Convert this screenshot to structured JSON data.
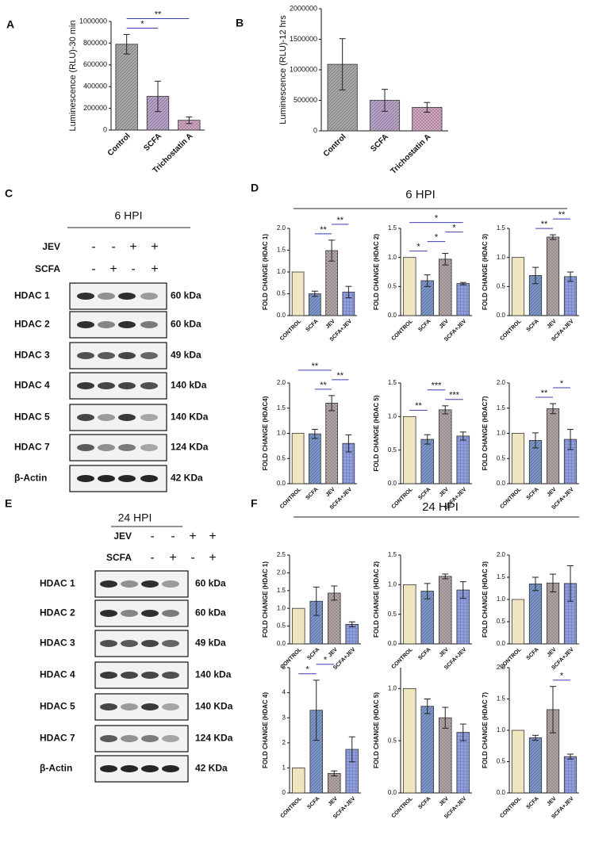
{
  "panels": [
    "A",
    "B",
    "C",
    "D",
    "E",
    "F"
  ],
  "groups": [
    {
      "title": "6 HPI"
    },
    {
      "title": "24 HPI"
    }
  ],
  "blots": [
    {
      "title": "6 HPI",
      "treatments": [
        {
          "name": "JEV",
          "signs": [
            "-",
            "-",
            "+",
            "+"
          ]
        },
        {
          "name": "SCFA",
          "signs": [
            "-",
            "+",
            "-",
            "+"
          ]
        }
      ],
      "rows": [
        {
          "protein": "HDAC 1",
          "size": "60 kDa"
        },
        {
          "protein": "HDAC 2",
          "size": "60 kDa"
        },
        {
          "protein": "HDAC 3",
          "size": "49 kDa"
        },
        {
          "protein": "HDAC 4",
          "size": "140 kDa"
        },
        {
          "protein": "HDAC 5",
          "size": "140 KDa"
        },
        {
          "protein": "HDAC 7",
          "size": "124 KDa"
        },
        {
          "protein": "β-Actin",
          "size": "42 KDa"
        }
      ]
    },
    {
      "title": "24 HPI",
      "treatments": [
        {
          "name": "JEV",
          "signs": [
            "-",
            "-",
            "+",
            "+"
          ]
        },
        {
          "name": "SCFA",
          "signs": [
            "-",
            "+",
            "-",
            "+"
          ]
        }
      ],
      "rows": [
        {
          "protein": "HDAC 1",
          "size": "60 kDa"
        },
        {
          "protein": "HDAC 2",
          "size": "60 kDa"
        },
        {
          "protein": "HDAC 3",
          "size": "49 kDa"
        },
        {
          "protein": "HDAC 4",
          "size": "140 kDa"
        },
        {
          "protein": "HDAC 5",
          "size": "140 KDa"
        },
        {
          "protein": "HDAC 7",
          "size": "124 KDa"
        },
        {
          "protein": "β-Actin",
          "size": "42 KDa"
        }
      ]
    }
  ],
  "chart_data": [
    {
      "type": "bar",
      "ylabel": "Luminescence (RLU)-30 min",
      "categories": [
        "Control",
        "SCFA",
        "Trichostatin A"
      ],
      "values": [
        790000,
        310000,
        90000
      ],
      "errors": [
        90000,
        140000,
        30000
      ],
      "colors": [
        "#a9a9a9",
        "#b9a3c9",
        "#d3a6c2"
      ],
      "ylim": [
        0,
        1000000
      ],
      "yticks": [
        0,
        200000,
        400000,
        600000,
        800000,
        1000000
      ],
      "significance": [
        {
          "pair": [
            "Control",
            "SCFA"
          ],
          "label": "*"
        },
        {
          "pair": [
            "Control",
            "Trichostatin A"
          ],
          "label": "**"
        }
      ]
    },
    {
      "type": "bar",
      "ylabel": "Luminescence (RLU)-12 hrs",
      "categories": [
        "Control",
        "SCFA",
        "Trichostatin A"
      ],
      "values": [
        1090000,
        500000,
        385000
      ],
      "errors": [
        420000,
        180000,
        80000
      ],
      "colors": [
        "#a9a9a9",
        "#b9a3c9",
        "#d3a6c2"
      ],
      "ylim": [
        0,
        2000000
      ],
      "yticks": [
        0,
        500000,
        1000000,
        1500000,
        2000000
      ],
      "significance": []
    },
    {
      "type": "bar",
      "ylabel": "FOLD CHANGE (HDAC 1)",
      "categories": [
        "CONTROL",
        "SCFA",
        "JEV",
        "SCFA+JEV"
      ],
      "values": [
        1.0,
        0.5,
        1.49,
        0.54
      ],
      "errors": [
        null,
        0.06,
        0.24,
        0.13
      ],
      "colors": [
        "#efe6c0",
        "#7c98cf",
        "#b6a8a8",
        "#8f9ee0"
      ],
      "ylim": [
        0,
        2.0
      ],
      "yticks": [
        {
          "value": 0,
          "label": "0.0"
        },
        {
          "value": 0.5,
          "label": "0.5"
        },
        {
          "value": 1.0,
          "label": "1.0"
        },
        {
          "value": 1.5,
          "label": "1.5"
        },
        {
          "value": 2.0,
          "label": "2.0"
        }
      ],
      "significance": [
        {
          "pair": [
            "SCFA",
            "JEV"
          ],
          "label": "**"
        },
        {
          "pair": [
            "JEV",
            "SCFA+JEV"
          ],
          "label": "**"
        }
      ]
    },
    {
      "type": "bar",
      "ylabel": "FOLD CHANGE (HDAC 2)",
      "categories": [
        "CONTROL",
        "SCFA",
        "JEV",
        "SCFA+JEV"
      ],
      "values": [
        1.0,
        0.6,
        0.97,
        0.55
      ],
      "errors": [
        null,
        0.1,
        0.1,
        0.02
      ],
      "colors": [
        "#efe6c0",
        "#7c98cf",
        "#b6a8a8",
        "#8f9ee0"
      ],
      "ylim": [
        0,
        1.5
      ],
      "yticks": [
        {
          "value": 0,
          "label": "0.0"
        },
        {
          "value": 0.5,
          "label": "0.5"
        },
        {
          "value": 1.0,
          "label": "1.0"
        },
        {
          "value": 1.5,
          "label": "1.5"
        }
      ],
      "significance": [
        {
          "pair": [
            "CONTROL",
            "SCFA"
          ],
          "label": "*"
        },
        {
          "pair": [
            "SCFA",
            "JEV"
          ],
          "label": "*"
        },
        {
          "pair": [
            "JEV",
            "SCFA+JEV"
          ],
          "label": "*"
        },
        {
          "pair": [
            "CONTROL",
            "SCFA+JEV"
          ],
          "label": "*"
        }
      ]
    },
    {
      "type": "bar",
      "ylabel": "FOLD CHANGE (HDAC 3)",
      "categories": [
        "CONTROL",
        "SCFA",
        "JEV",
        "SCFA+JEV"
      ],
      "values": [
        1.0,
        0.69,
        1.35,
        0.67
      ],
      "errors": [
        null,
        0.14,
        0.04,
        0.08
      ],
      "colors": [
        "#efe6c0",
        "#7c98cf",
        "#b6a8a8",
        "#8f9ee0"
      ],
      "ylim": [
        0,
        1.5
      ],
      "yticks": [
        {
          "value": 0,
          "label": "0.0"
        },
        {
          "value": 0.5,
          "label": "0.5"
        },
        {
          "value": 1.0,
          "label": "1.0"
        },
        {
          "value": 1.5,
          "label": "1.5"
        }
      ],
      "significance": [
        {
          "pair": [
            "SCFA",
            "JEV"
          ],
          "label": "**"
        },
        {
          "pair": [
            "JEV",
            "SCFA+JEV"
          ],
          "label": "**"
        }
      ]
    },
    {
      "type": "bar",
      "ylabel": "FOLD CHANGE (HDAC4)",
      "categories": [
        "CONTROL",
        "SCFA",
        "JEV",
        "SCFA+JEV"
      ],
      "values": [
        1.0,
        0.99,
        1.6,
        0.8
      ],
      "errors": [
        null,
        0.09,
        0.15,
        0.17
      ],
      "colors": [
        "#efe6c0",
        "#7c98cf",
        "#b6a8a8",
        "#8f9ee0"
      ],
      "ylim": [
        0,
        2.0
      ],
      "yticks": [
        {
          "value": 0,
          "label": "0.0"
        },
        {
          "value": 0.5,
          "label": "0.5"
        },
        {
          "value": 1.0,
          "label": "1.0"
        },
        {
          "value": 1.5,
          "label": "1.5"
        },
        {
          "value": 2.0,
          "label": "2.0"
        }
      ],
      "significance": [
        {
          "pair": [
            "SCFA",
            "JEV"
          ],
          "label": "**"
        },
        {
          "pair": [
            "JEV",
            "SCFA+JEV"
          ],
          "label": "**"
        },
        {
          "pair": [
            "CONTROL",
            "JEV"
          ],
          "label": "**"
        }
      ]
    },
    {
      "type": "bar",
      "ylabel": "FOLD CHANGE (HDAC 5)",
      "categories": [
        "CONTROL",
        "SCFA",
        "JEV",
        "SCFA+JEV"
      ],
      "values": [
        1.0,
        0.66,
        1.1,
        0.71
      ],
      "errors": [
        null,
        0.07,
        0.06,
        0.06
      ],
      "colors": [
        "#efe6c0",
        "#7c98cf",
        "#b6a8a8",
        "#8f9ee0"
      ],
      "ylim": [
        0,
        1.5
      ],
      "yticks": [
        {
          "value": 0,
          "label": "0.0"
        },
        {
          "value": 0.5,
          "label": "0.5"
        },
        {
          "value": 1.0,
          "label": "1.0"
        },
        {
          "value": 1.5,
          "label": "1.5"
        }
      ],
      "significance": [
        {
          "pair": [
            "CONTROL",
            "SCFA"
          ],
          "label": "**"
        },
        {
          "pair": [
            "JEV",
            "SCFA+JEV"
          ],
          "label": "***"
        },
        {
          "pair": [
            "SCFA",
            "JEV"
          ],
          "label": "***"
        }
      ]
    },
    {
      "type": "bar",
      "ylabel": "FOLD CHANGE (HDAC7)",
      "categories": [
        "CONTROL",
        "SCFA",
        "JEV",
        "SCFA+JEV"
      ],
      "values": [
        1.0,
        0.86,
        1.49,
        0.88
      ],
      "errors": [
        null,
        0.15,
        0.1,
        0.2
      ],
      "colors": [
        "#efe6c0",
        "#7c98cf",
        "#b6a8a8",
        "#8f9ee0"
      ],
      "ylim": [
        0,
        2.0
      ],
      "yticks": [
        {
          "value": 0,
          "label": "0.0"
        },
        {
          "value": 0.5,
          "label": "0.5"
        },
        {
          "value": 1.0,
          "label": "1.0"
        },
        {
          "value": 1.5,
          "label": "1.5"
        },
        {
          "value": 2.0,
          "label": "2.0"
        }
      ],
      "significance": [
        {
          "pair": [
            "SCFA",
            "JEV"
          ],
          "label": "**"
        },
        {
          "pair": [
            "JEV",
            "SCFA+JEV"
          ],
          "label": "*"
        }
      ]
    },
    {
      "type": "bar",
      "ylabel": "FOLD CHANGE (HDAC 1)",
      "categories": [
        "CONTROL",
        "SCFA",
        "JEV",
        "SCFA+JEV"
      ],
      "values": [
        1.0,
        1.2,
        1.43,
        0.55
      ],
      "errors": [
        null,
        0.4,
        0.2,
        0.07
      ],
      "colors": [
        "#efe6c0",
        "#7c98cf",
        "#b6a8a8",
        "#8f9ee0"
      ],
      "ylim": [
        0,
        2.5
      ],
      "yticks": [
        {
          "value": 0,
          "label": "0.0"
        },
        {
          "value": 0.5,
          "label": "0.5"
        },
        {
          "value": 1.0,
          "label": "1.0"
        },
        {
          "value": 1.5,
          "label": "1.5"
        },
        {
          "value": 2.0,
          "label": "2.0"
        },
        {
          "value": 2.5,
          "label": "2.5"
        }
      ],
      "significance": []
    },
    {
      "type": "bar",
      "ylabel": "FOLD CHANGE (HDAC 2)",
      "categories": [
        "CONTROL",
        "SCFA",
        "JEV",
        "SCFA+JEV"
      ],
      "values": [
        1.0,
        0.89,
        1.14,
        0.91
      ],
      "errors": [
        null,
        0.13,
        0.04,
        0.14
      ],
      "colors": [
        "#efe6c0",
        "#7c98cf",
        "#b6a8a8",
        "#8f9ee0"
      ],
      "ylim": [
        0,
        1.5
      ],
      "yticks": [
        {
          "value": 0,
          "label": "0.0"
        },
        {
          "value": 0.5,
          "label": "0.5"
        },
        {
          "value": 1.0,
          "label": "1.0"
        },
        {
          "value": 1.5,
          "label": "1.5"
        }
      ],
      "significance": []
    },
    {
      "type": "bar",
      "ylabel": "FOLD CHANGE (HDAC 3)",
      "categories": [
        "CONTROL",
        "SCFA",
        "JEV",
        "SCFA+JEV"
      ],
      "values": [
        1.0,
        1.35,
        1.37,
        1.36
      ],
      "errors": [
        null,
        0.15,
        0.2,
        0.4
      ],
      "colors": [
        "#efe6c0",
        "#7c98cf",
        "#b6a8a8",
        "#8f9ee0"
      ],
      "ylim": [
        0,
        2.0
      ],
      "yticks": [
        {
          "value": 0,
          "label": "0.0"
        },
        {
          "value": 0.5,
          "label": "0.5"
        },
        {
          "value": 1.0,
          "label": "1.0"
        },
        {
          "value": 1.5,
          "label": "1.5"
        },
        {
          "value": 2.0,
          "label": "2.0"
        }
      ],
      "significance": []
    },
    {
      "type": "bar",
      "ylabel": "FOLD CHANGE (HDAC 4)",
      "categories": [
        "CONTROL",
        "SCFA",
        "JEV",
        "SCFA+JEV"
      ],
      "values": [
        1.0,
        3.3,
        0.78,
        1.74
      ],
      "errors": [
        null,
        1.2,
        0.1,
        0.5
      ],
      "colors": [
        "#efe6c0",
        "#7c98cf",
        "#b6a8a8",
        "#8f9ee0"
      ],
      "ylim": [
        0,
        5
      ],
      "yticks": [
        0,
        1,
        2,
        3,
        4,
        5
      ],
      "significance": [
        {
          "pair": [
            "CONTROL",
            "SCFA"
          ],
          "label": "*"
        },
        {
          "pair": [
            "SCFA",
            "JEV"
          ],
          "label": "*"
        }
      ]
    },
    {
      "type": "bar",
      "ylabel": "FOLD CHANGE (HDAC 5)",
      "categories": [
        "CONTROL",
        "SCFA",
        "JEV",
        "SCFA+JEV"
      ],
      "values": [
        1.0,
        0.83,
        0.72,
        0.58
      ],
      "errors": [
        null,
        0.07,
        0.1,
        0.08
      ],
      "colors": [
        "#efe6c0",
        "#7c98cf",
        "#b6a8a8",
        "#8f9ee0"
      ],
      "ylim": [
        0,
        1.2
      ],
      "yticks": [
        {
          "value": 0,
          "label": "0.0"
        },
        {
          "value": 0.5,
          "label": "0.5"
        },
        {
          "value": 1.0,
          "label": "1.0"
        }
      ],
      "significance": []
    },
    {
      "type": "bar",
      "ylabel": "FOLD CHANGE (HDAC 7)",
      "categories": [
        "CONTROL",
        "SCFA",
        "JEV",
        "SCFA+JEV"
      ],
      "values": [
        1.0,
        0.88,
        1.33,
        0.58
      ],
      "errors": [
        null,
        0.04,
        0.37,
        0.04
      ],
      "colors": [
        "#efe6c0",
        "#7c98cf",
        "#b6a8a8",
        "#8f9ee0"
      ],
      "ylim": [
        0,
        2.0
      ],
      "yticks": [
        {
          "value": 0,
          "label": "0.0"
        },
        {
          "value": 0.5,
          "label": "0.5"
        },
        {
          "value": 1.0,
          "label": "1.0"
        },
        {
          "value": 1.5,
          "label": "1.5"
        },
        {
          "value": 2.0,
          "label": "2.0"
        }
      ],
      "significance": [
        {
          "pair": [
            "JEV",
            "SCFA+JEV"
          ],
          "label": "*"
        }
      ]
    }
  ]
}
